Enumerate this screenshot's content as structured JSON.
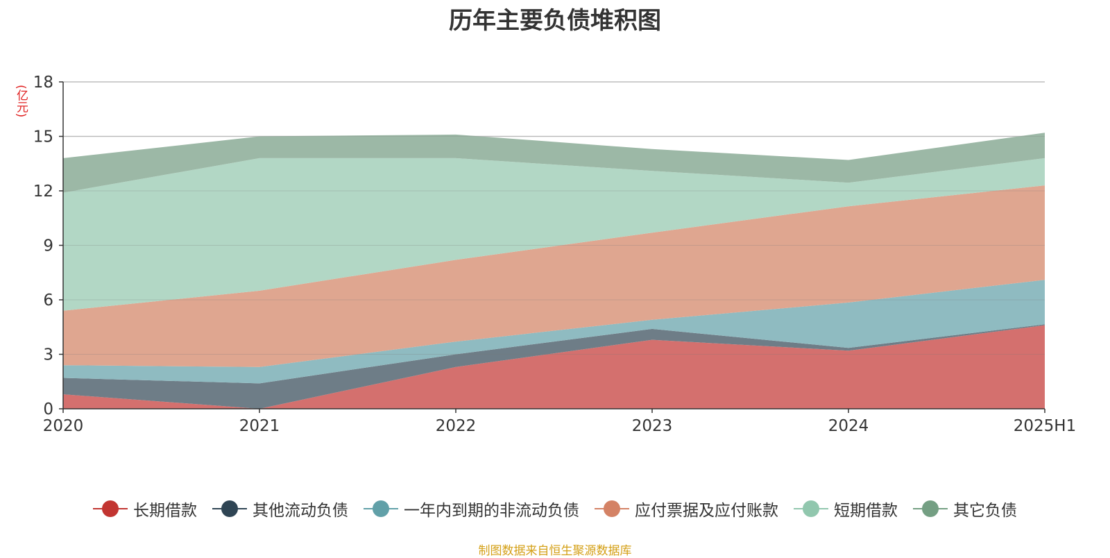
{
  "chart_data": {
    "type": "area",
    "stacked": true,
    "title": "历年主要负债堆积图",
    "ylabel": "(亿元)",
    "xlabel": "",
    "ylim": [
      0,
      18
    ],
    "yticks": [
      0,
      3,
      6,
      9,
      12,
      15,
      18
    ],
    "categories": [
      "2020",
      "2021",
      "2022",
      "2023",
      "2024",
      "2025H1"
    ],
    "grid": true,
    "legend_position": "bottom",
    "series": [
      {
        "name": "长期借款",
        "color": "#c23531",
        "area_color": "#d4706e",
        "values": [
          0.8,
          0.0,
          2.3,
          3.8,
          3.2,
          4.6
        ]
      },
      {
        "name": "其他流动负债",
        "color": "#2f4554",
        "area_color": "#6e7d87",
        "values": [
          0.9,
          1.4,
          0.7,
          0.6,
          0.15,
          0.05
        ]
      },
      {
        "name": "一年内到期的非流动负债",
        "color": "#61a0a8",
        "area_color": "#8fbbc1",
        "values": [
          0.7,
          0.9,
          0.7,
          0.5,
          2.5,
          2.45
        ]
      },
      {
        "name": "应付票据及应付账款",
        "color": "#d48265",
        "area_color": "#dfa690",
        "values": [
          3.0,
          4.2,
          4.5,
          4.8,
          5.3,
          5.2
        ]
      },
      {
        "name": "短期借款",
        "color": "#91c7ae",
        "area_color": "#b2d7c5",
        "values": [
          6.5,
          7.3,
          5.6,
          3.4,
          1.3,
          1.5
        ]
      },
      {
        "name": "其它负债",
        "color": "#749f83",
        "area_color": "#9cb8a6",
        "values": [
          1.9,
          1.2,
          1.3,
          1.2,
          1.25,
          1.4
        ]
      }
    ],
    "source": "制图数据来自恒生聚源数据库"
  }
}
